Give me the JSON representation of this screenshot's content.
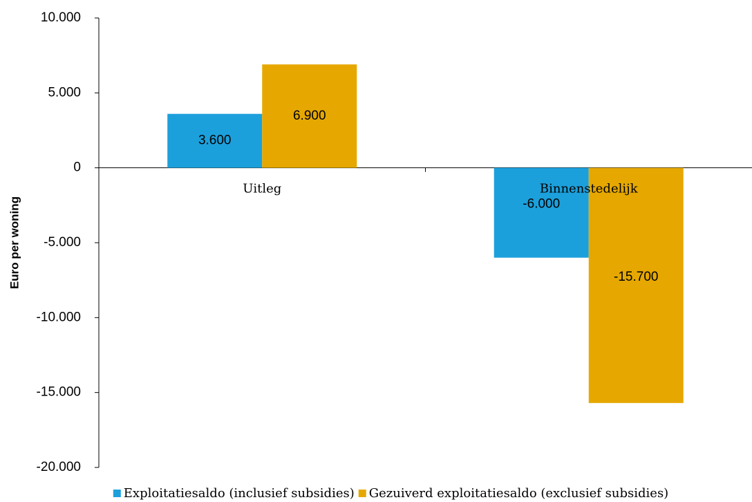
{
  "chart_data": {
    "type": "bar",
    "y_label": "Euro per woning",
    "categories": [
      "Uitleg",
      "Binnenstedelijk"
    ],
    "series": [
      {
        "name": "Exploitatiesaldo (inclusief subsidies)",
        "color": "#1ca0dc",
        "values": [
          3600,
          -6000
        ],
        "value_labels": [
          "3.600",
          "-6.000"
        ]
      },
      {
        "name": "Gezuiverd exploitatiesaldo (exclusief subsidies)",
        "color": "#e6a800",
        "values": [
          6900,
          -15700
        ],
        "value_labels": [
          "6.900",
          "-15.700"
        ]
      }
    ],
    "ylim": [
      -20000,
      10000
    ],
    "yticks": [
      {
        "value": -20000,
        "label": "-20.000"
      },
      {
        "value": -15000,
        "label": "-15.000"
      },
      {
        "value": -10000,
        "label": "-10.000"
      },
      {
        "value": -5000,
        "label": "-5.000"
      },
      0,
      {
        "value": 5000,
        "label": "5.000"
      },
      {
        "value": 10000,
        "label": "10.000"
      }
    ],
    "legend": "bottom"
  }
}
